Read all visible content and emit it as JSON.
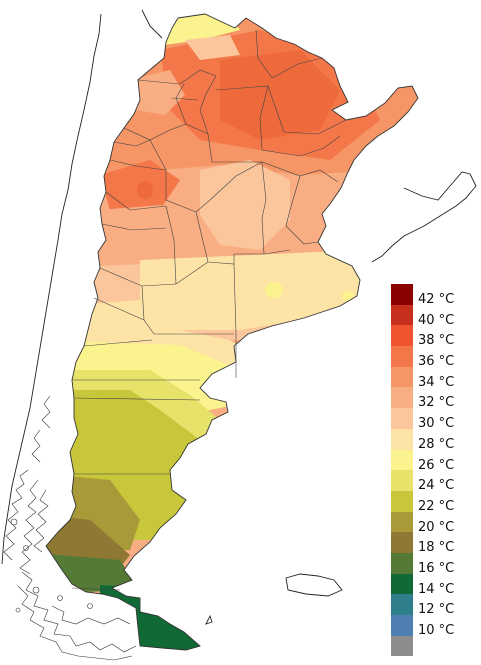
{
  "legend": {
    "items": [
      {
        "label": "42 °C",
        "color": "#8b0000"
      },
      {
        "label": "40 °C",
        "color": "#c62f1b"
      },
      {
        "label": "38 °C",
        "color": "#ee5430"
      },
      {
        "label": "36 °C",
        "color": "#f4774a"
      },
      {
        "label": "34 °C",
        "color": "#f69565"
      },
      {
        "label": "32 °C",
        "color": "#f8ad82"
      },
      {
        "label": "30 °C",
        "color": "#fbc69b"
      },
      {
        "label": "28 °C",
        "color": "#fde3a5"
      },
      {
        "label": "26 °C",
        "color": "#fbf38e"
      },
      {
        "label": "24 °C",
        "color": "#e7e26a"
      },
      {
        "label": "22 °C",
        "color": "#c8c63a"
      },
      {
        "label": "20 °C",
        "color": "#a89a38"
      },
      {
        "label": "18 °C",
        "color": "#8f7834"
      },
      {
        "label": "16 °C",
        "color": "#557a35"
      },
      {
        "label": "14 °C",
        "color": "#0f6a35"
      },
      {
        "label": "12 °C",
        "color": "#2e7e8c"
      },
      {
        "label": "10 °C",
        "color": "#4f7fb0"
      },
      {
        "label": "",
        "color": "#8c8c8c"
      }
    ]
  },
  "icons": {
    "legend": "temperature-scale-icon"
  }
}
